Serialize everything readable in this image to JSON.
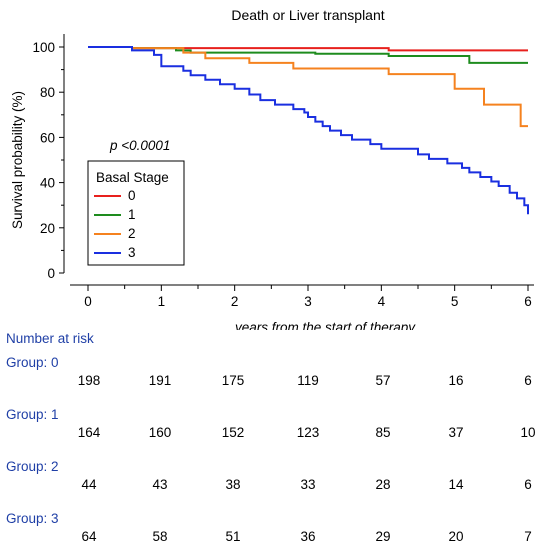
{
  "chart_data": {
    "type": "line",
    "title": "Death or Liver transplant",
    "xlabel": "years from the start of therapy",
    "ylabel": "Survival probability (%)",
    "xlim": [
      0,
      6
    ],
    "ylim": [
      0,
      100
    ],
    "xticks": [
      0,
      1,
      2,
      3,
      4,
      5,
      6
    ],
    "yticks": [
      0,
      20,
      40,
      60,
      80,
      100
    ],
    "step": true,
    "grid": false,
    "annotation": "p <0.0001",
    "legend": {
      "title": "Basal Stage",
      "position": "center-left"
    },
    "series": [
      {
        "name": "0",
        "color": "#e8201d",
        "x": [
          0,
          0.6,
          4.1,
          6.0
        ],
        "y": [
          100,
          99.5,
          98.5,
          98.5
        ]
      },
      {
        "name": "1",
        "color": "#1e8c1e",
        "x": [
          0,
          0.6,
          1.2,
          1.4,
          3.1,
          4.1,
          5.2,
          6.0
        ],
        "y": [
          100,
          99.5,
          98.5,
          97.5,
          97,
          96,
          93,
          93
        ]
      },
      {
        "name": "2",
        "color": "#f5821f",
        "x": [
          0,
          0.6,
          1.3,
          1.6,
          2.2,
          2.8,
          4.1,
          5.0,
          5.4,
          5.9,
          6.0
        ],
        "y": [
          100,
          99.5,
          97.5,
          95,
          93,
          90.5,
          88,
          81.5,
          74.5,
          65,
          65
        ]
      },
      {
        "name": "3",
        "color": "#1a2fe0",
        "x": [
          0,
          0.6,
          0.9,
          1.0,
          1.3,
          1.4,
          1.6,
          1.8,
          2.0,
          2.2,
          2.35,
          2.55,
          2.8,
          2.95,
          3.0,
          3.1,
          3.2,
          3.3,
          3.45,
          3.6,
          3.85,
          4.0,
          4.5,
          4.65,
          4.9,
          5.1,
          5.2,
          5.35,
          5.5,
          5.6,
          5.75,
          5.85,
          5.95,
          6.0
        ],
        "y": [
          100,
          98.5,
          96.5,
          91.5,
          89.5,
          87.5,
          85.5,
          83.5,
          81.5,
          79,
          76.5,
          74.5,
          72.5,
          71,
          69,
          67,
          65,
          63,
          61,
          59,
          57,
          55,
          52.5,
          50.5,
          48.5,
          46.5,
          44.5,
          42.5,
          40.5,
          38.5,
          35.5,
          33,
          30,
          26
        ]
      }
    ]
  },
  "risk_table": {
    "heading": "Number at risk",
    "groups": [
      {
        "label": "Group: 0",
        "values": [
          "198",
          "191",
          "175",
          "119",
          "57",
          "16",
          "6"
        ]
      },
      {
        "label": "Group: 1",
        "values": [
          "164",
          "160",
          "152",
          "123",
          "85",
          "37",
          "10"
        ]
      },
      {
        "label": "Group: 2",
        "values": [
          "44",
          "43",
          "38",
          "33",
          "28",
          "14",
          "6"
        ]
      },
      {
        "label": "Group: 3",
        "values": [
          "64",
          "58",
          "51",
          "36",
          "29",
          "20",
          "7"
        ]
      }
    ]
  }
}
